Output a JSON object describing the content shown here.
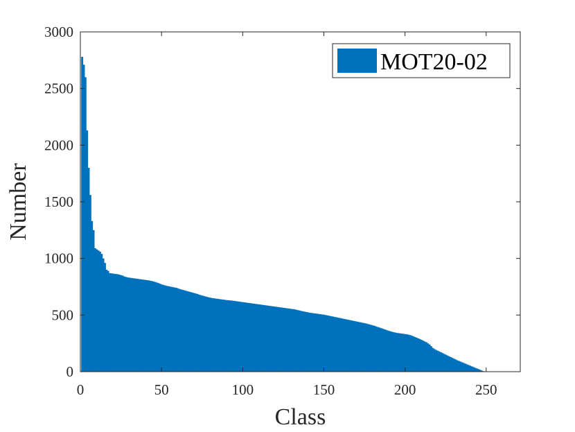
{
  "chart_data": {
    "type": "bar",
    "title": "",
    "xlabel": "Class",
    "ylabel": "Number",
    "xlim": [
      0,
      271
    ],
    "ylim": [
      0,
      3000
    ],
    "xticks": [
      0,
      50,
      100,
      150,
      200,
      250
    ],
    "yticks": [
      0,
      500,
      1000,
      1500,
      2000,
      2500,
      3000
    ],
    "grid": false,
    "legend": {
      "position": "top-right",
      "entries": [
        "MOT20-02"
      ]
    },
    "series": [
      {
        "name": "MOT20-02",
        "color": "#0072BD",
        "values": [
          2780,
          2710,
          2600,
          2130,
          1800,
          1560,
          1330,
          1250,
          1090,
          1080,
          1070,
          1060,
          1040,
          1000,
          960,
          900,
          890,
          870,
          868,
          866,
          864,
          862,
          860,
          856,
          852,
          848,
          840,
          836,
          832,
          830,
          828,
          826,
          824,
          822,
          820,
          818,
          816,
          814,
          812,
          810,
          808,
          806,
          803,
          800,
          796,
          792,
          787,
          782,
          776,
          770,
          766,
          762,
          758,
          755,
          752,
          749,
          746,
          743,
          740,
          736,
          730,
          726,
          722,
          718,
          714,
          710,
          706,
          702,
          698,
          694,
          690,
          686,
          680,
          676,
          672,
          668,
          664,
          660,
          656,
          653,
          650,
          648,
          646,
          644,
          642,
          640,
          638,
          636,
          634,
          632,
          631,
          630,
          628,
          626,
          624,
          622,
          620,
          618,
          616,
          614,
          612,
          610,
          608,
          606,
          604,
          602,
          600,
          598,
          596,
          594,
          592,
          590,
          588,
          586,
          584,
          582,
          580,
          578,
          576,
          574,
          572,
          570,
          568,
          566,
          564,
          562,
          560,
          558,
          556,
          554,
          552,
          550,
          546,
          543,
          540,
          536,
          533,
          530,
          527,
          524,
          521,
          519,
          517,
          515,
          513,
          511,
          509,
          507,
          505,
          503,
          500,
          497,
          494,
          491,
          488,
          485,
          482,
          479,
          476,
          473,
          470,
          467,
          464,
          461,
          458,
          455,
          452,
          449,
          446,
          443,
          440,
          437,
          434,
          431,
          428,
          425,
          421,
          417,
          413,
          409,
          405,
          400,
          395,
          390,
          385,
          380,
          375,
          370,
          365,
          360,
          356,
          352,
          348,
          345,
          342,
          340,
          338,
          336,
          334,
          332,
          330,
          327,
          323,
          318,
          312,
          306,
          300,
          294,
          288,
          281,
          274,
          267,
          260,
          250,
          240,
          225,
          210,
          200,
          192,
          185,
          178,
          171,
          164,
          157,
          150,
          143,
          136,
          129,
          122,
          115,
          108,
          101,
          95,
          89,
          83,
          77,
          71,
          65,
          59,
          53,
          47,
          41,
          35,
          29,
          23,
          17,
          11,
          5
        ]
      }
    ]
  }
}
